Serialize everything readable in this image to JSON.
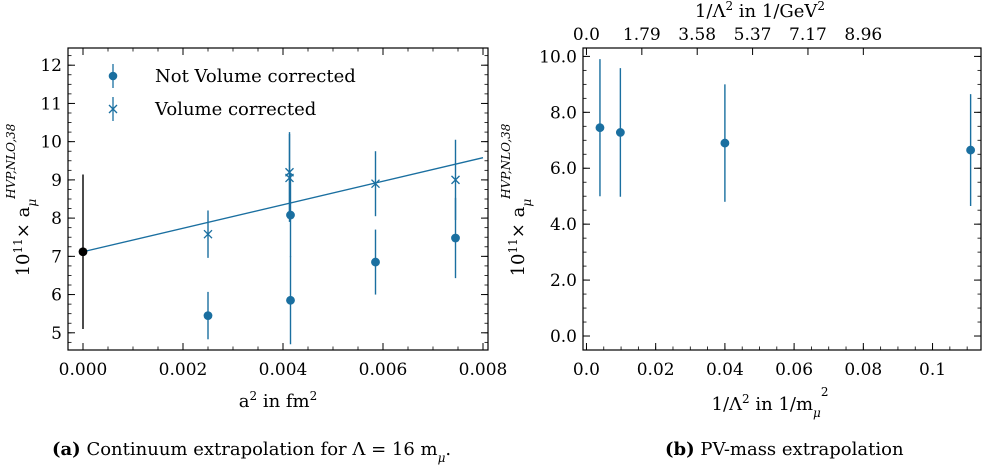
{
  "chart_data": [
    {
      "type": "scatter",
      "caption_label": "(a)",
      "caption_text": "Continuum extrapolation for Λ = 16 m",
      "caption_sub": "μ",
      "caption_end": ".",
      "xlabel": "a",
      "xlabel_sup": "2",
      "xlabel_rest": " in fm",
      "xlabel_sup2": "2",
      "ylabel_prefix": "10",
      "ylabel_prefix_sup": "11",
      "ylabel_mid": "× a",
      "ylabel_sub": "μ",
      "ylabel_sup": "HVP,NLO,38",
      "xlim": [
        -0.0003,
        0.0081
      ],
      "ylim": [
        4.55,
        12.45
      ],
      "xticks": [
        0.0,
        0.002,
        0.004,
        0.006,
        0.008
      ],
      "xtick_labels": [
        "0.000",
        "0.002",
        "0.004",
        "0.006",
        "0.008"
      ],
      "yticks": [
        5,
        6,
        7,
        8,
        9,
        10,
        11,
        12
      ],
      "ytick_labels": [
        "5",
        "6",
        "7",
        "8",
        "9",
        "10",
        "11",
        "12"
      ],
      "legend_position": "top-left",
      "series": [
        {
          "name": "Not Volume corrected",
          "marker": "circle",
          "color": "#1a6fa0",
          "points": [
            {
              "x": 0.0025,
              "y": 5.45,
              "yerr": 0.62
            },
            {
              "x": 0.00415,
              "y": 5.85,
              "yerr": 1.15
            },
            {
              "x": 0.00415,
              "y": 8.08,
              "yerr": 1.1
            },
            {
              "x": 0.00585,
              "y": 6.85,
              "yerr": 0.85
            },
            {
              "x": 0.00745,
              "y": 7.48,
              "yerr": 1.05
            }
          ]
        },
        {
          "name": "Volume corrected",
          "marker": "x",
          "color": "#1a6fa0",
          "points": [
            {
              "x": 0.0025,
              "y": 7.58,
              "yerr": 0.62
            },
            {
              "x": 0.00413,
              "y": 9.05,
              "yerr": 1.15
            },
            {
              "x": 0.00413,
              "y": 9.2,
              "yerr": 1.05
            },
            {
              "x": 0.00585,
              "y": 8.9,
              "yerr": 0.85
            },
            {
              "x": 0.00745,
              "y": 9.0,
              "yerr": 1.05
            }
          ]
        }
      ],
      "fit_line": {
        "x": [
          0.0,
          0.008
        ],
        "y": [
          7.12,
          9.58
        ],
        "color": "#1a6fa0"
      },
      "extrapolated_point": {
        "x": 0.0,
        "y": 7.12,
        "yerr": 2.02,
        "color": "#000000"
      }
    },
    {
      "type": "scatter",
      "caption_label": "(b)",
      "caption_text": "PV-mass extrapolation",
      "xlabel": "1/Λ",
      "xlabel_sup": "2",
      "xlabel_rest": " in 1/m",
      "xlabel_sub2": "μ",
      "xlabel_sup2": "2",
      "top_xlabel": "1/Λ",
      "top_xlabel_sup": "2",
      "top_xlabel_rest": " in 1/GeV",
      "top_xlabel_sup2": "2",
      "ylabel_prefix": "10",
      "ylabel_prefix_sup": "11",
      "ylabel_mid": "× a",
      "ylabel_sub": "μ",
      "ylabel_sup": "HVP,NLO,38",
      "xlim": [
        -0.001,
        0.114
      ],
      "ylim": [
        -0.5,
        10.3
      ],
      "xticks": [
        0.0,
        0.02,
        0.04,
        0.06,
        0.08,
        0.1
      ],
      "xtick_labels": [
        "0.0",
        "0.02",
        "0.04",
        "0.06",
        "0.08",
        "0.1"
      ],
      "top_xticks": [
        0.0,
        0.016,
        0.032,
        0.048,
        0.064,
        0.08
      ],
      "top_xtick_labels": [
        "0.0",
        "1.79",
        "3.58",
        "5.37",
        "7.17",
        "8.96"
      ],
      "yticks": [
        0,
        2,
        4,
        6,
        8,
        10
      ],
      "ytick_labels": [
        "0.0",
        "2.0",
        "4.0",
        "6.0",
        "8.0",
        "10.0"
      ],
      "series": [
        {
          "name": "",
          "marker": "circle",
          "color": "#1a6fa0",
          "points": [
            {
              "x": 0.0039,
              "y": 7.45,
              "yerr": 2.45
            },
            {
              "x": 0.0098,
              "y": 7.28,
              "yerr": 2.3
            },
            {
              "x": 0.04,
              "y": 6.9,
              "yerr": 2.1
            },
            {
              "x": 0.111,
              "y": 6.65,
              "yerr": 2.0
            }
          ]
        }
      ]
    }
  ]
}
